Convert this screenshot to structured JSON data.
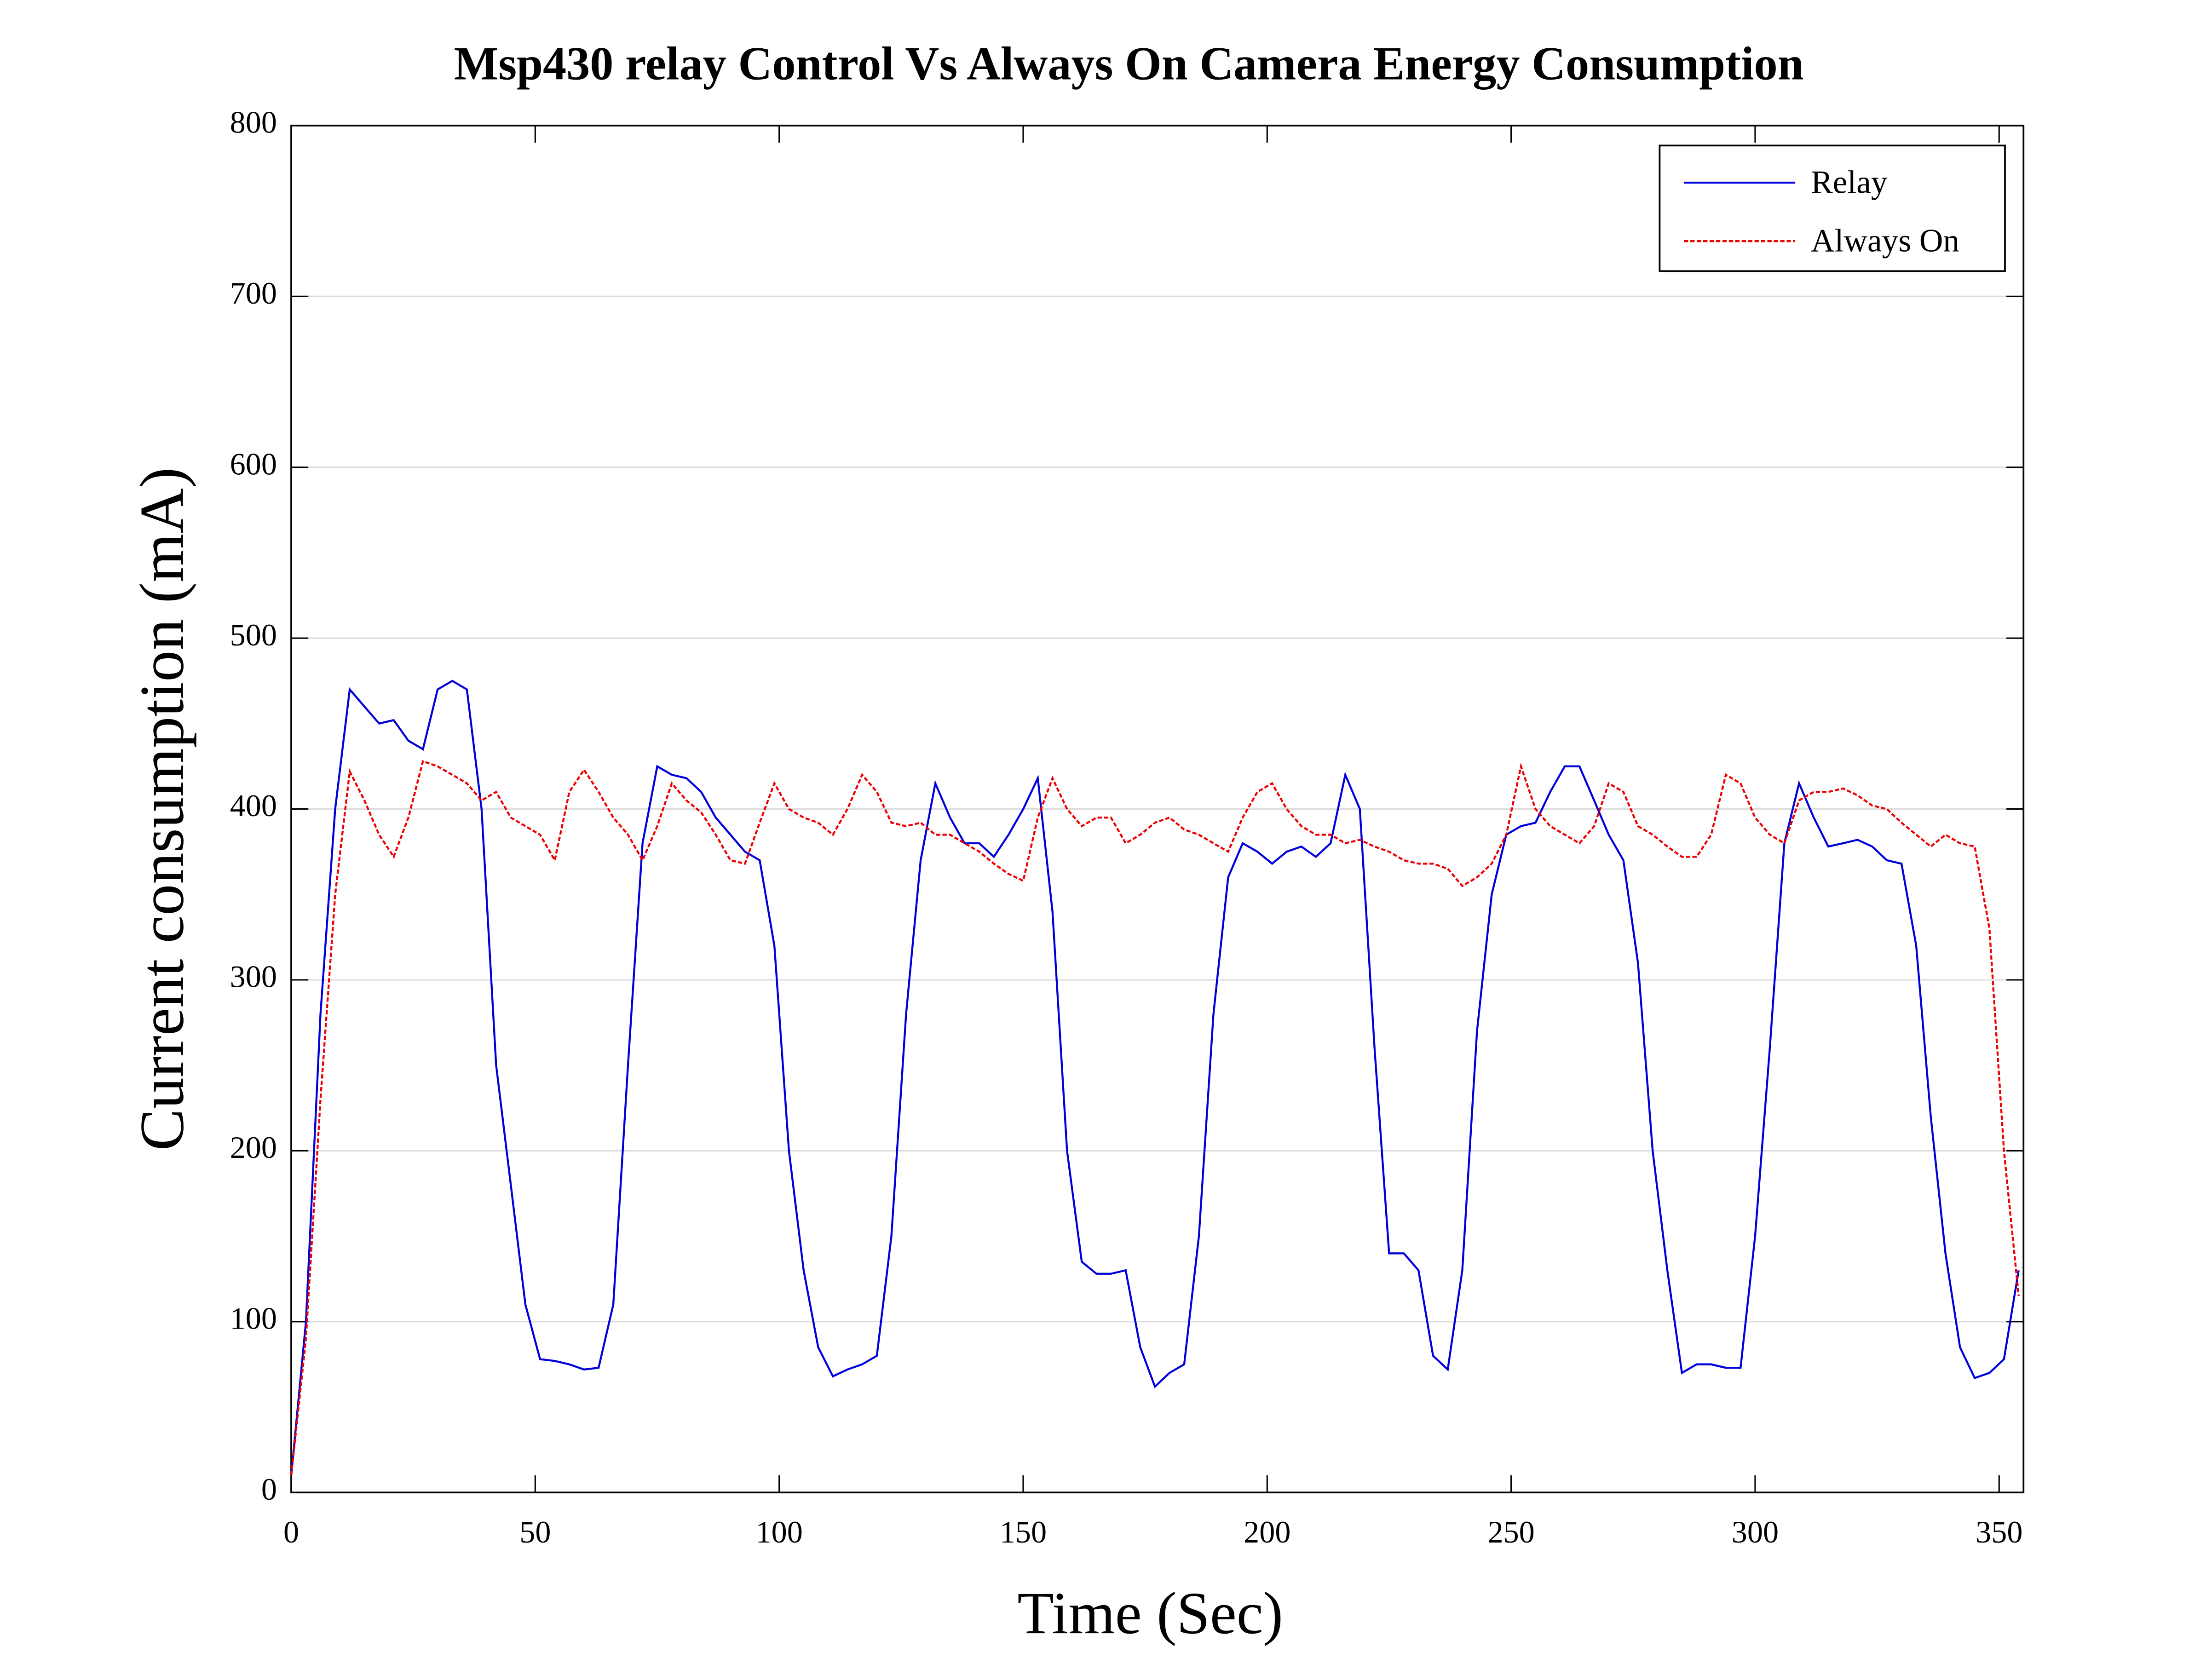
{
  "chart_data": {
    "type": "line",
    "title": "Msp430 relay Control Vs Always On Camera Energy Consumption",
    "x_label": "Time (Sec)",
    "y_label": "Current consumption (mA)",
    "x": [
      0,
      3,
      6,
      9,
      12,
      15,
      18,
      21,
      24,
      27,
      30,
      33,
      36,
      39,
      42,
      45,
      48,
      51,
      54,
      57,
      60,
      63,
      66,
      69,
      72,
      75,
      78,
      81,
      84,
      87,
      90,
      93,
      96,
      99,
      102,
      105,
      108,
      111,
      114,
      117,
      120,
      123,
      126,
      129,
      132,
      135,
      138,
      141,
      144,
      147,
      150,
      153,
      156,
      159,
      162,
      165,
      168,
      171,
      174,
      177,
      180,
      183,
      186,
      189,
      192,
      195,
      198,
      201,
      204,
      207,
      210,
      213,
      216,
      219,
      222,
      225,
      228,
      231,
      234,
      237,
      240,
      243,
      246,
      249,
      252,
      255,
      258,
      261,
      264,
      267,
      270,
      273,
      276,
      279,
      282,
      285,
      288,
      291,
      294,
      297,
      300,
      303,
      306,
      309,
      312,
      315,
      318,
      321,
      324,
      327,
      330,
      333,
      336,
      339,
      342,
      345,
      348,
      351,
      354
    ],
    "series": [
      {
        "name": "Relay",
        "color": "#0000dd",
        "dashed": false,
        "values": [
          10,
          100,
          280,
          400,
          470,
          460,
          450,
          452,
          440,
          435,
          470,
          475,
          470,
          400,
          250,
          180,
          110,
          78,
          77,
          75,
          72,
          73,
          110,
          250,
          380,
          425,
          420,
          418,
          410,
          395,
          385,
          375,
          370,
          320,
          200,
          130,
          85,
          68,
          72,
          75,
          80,
          150,
          280,
          370,
          415,
          395,
          380,
          380,
          372,
          385,
          400,
          418,
          340,
          200,
          135,
          128,
          128,
          130,
          85,
          62,
          70,
          75,
          150,
          280,
          360,
          380,
          375,
          368,
          375,
          378,
          372,
          380,
          420,
          400,
          260,
          140,
          140,
          130,
          80,
          72,
          130,
          270,
          350,
          385,
          390,
          392,
          410,
          425,
          425,
          405,
          385,
          370,
          310,
          200,
          130,
          70,
          75,
          75,
          73,
          73,
          150,
          260,
          380,
          415,
          395,
          378,
          380,
          382,
          378,
          370,
          368,
          320,
          220,
          140,
          85,
          67,
          70,
          78,
          130
        ]
      },
      {
        "name": "Always On",
        "color": "#ee0000",
        "dashed": true,
        "values": [
          10,
          90,
          230,
          350,
          422,
          405,
          385,
          372,
          395,
          428,
          425,
          420,
          415,
          405,
          410,
          395,
          390,
          385,
          370,
          410,
          423,
          410,
          395,
          385,
          370,
          390,
          415,
          405,
          398,
          385,
          370,
          368,
          392,
          415,
          400,
          395,
          392,
          385,
          400,
          420,
          410,
          392,
          390,
          392,
          385,
          385,
          380,
          375,
          368,
          362,
          358,
          395,
          418,
          400,
          390,
          395,
          395,
          380,
          385,
          392,
          395,
          388,
          385,
          380,
          375,
          395,
          410,
          415,
          400,
          390,
          385,
          385,
          380,
          382,
          378,
          375,
          370,
          368,
          368,
          365,
          355,
          360,
          368,
          385,
          425,
          400,
          390,
          385,
          380,
          390,
          415,
          410,
          390,
          385,
          378,
          372,
          372,
          385,
          420,
          415,
          395,
          385,
          380,
          405,
          410,
          410,
          412,
          408,
          402,
          400,
          392,
          385,
          378,
          385,
          380,
          378,
          330,
          200,
          115
        ]
      }
    ],
    "xlim": [
      0,
      355
    ],
    "xticks": [
      0,
      50,
      100,
      150,
      200,
      250,
      300,
      350
    ],
    "ylim": [
      0,
      800
    ],
    "yticks": [
      0,
      100,
      200,
      300,
      400,
      500,
      600,
      700,
      800
    ],
    "grid": true,
    "legend": "upper right"
  }
}
